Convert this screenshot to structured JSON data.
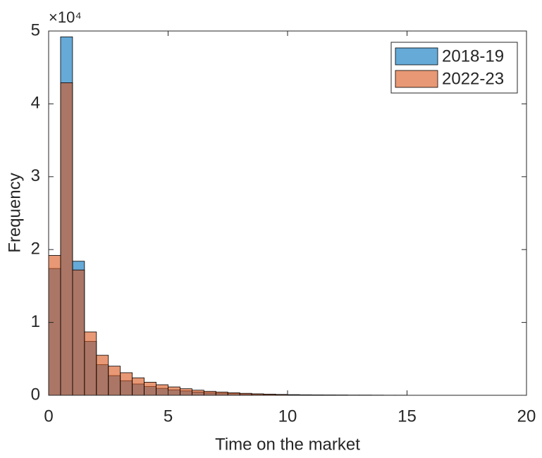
{
  "chart_data": {
    "type": "histogram",
    "xlabel": "Time on the market",
    "ylabel": "Frequency",
    "y_multiplier": "×10⁴",
    "bins": [
      0,
      0.5,
      1,
      1.5,
      2,
      2.5,
      3,
      3.5,
      4,
      4.5,
      5,
      5.5,
      6,
      6.5,
      7,
      7.5,
      8,
      8.5,
      9,
      9.5,
      10,
      10.5,
      11,
      11.5,
      12,
      12.5,
      13,
      13.5,
      14,
      14.5,
      15,
      15.5,
      16,
      16.5,
      17,
      17.5,
      18,
      18.5,
      19,
      19.5,
      20
    ],
    "series": [
      {
        "name": "2018-19",
        "color": "#0072bd",
        "values": [
          1.74,
          4.92,
          1.84,
          0.74,
          0.42,
          0.27,
          0.2,
          0.155,
          0.12,
          0.095,
          0.075,
          0.06,
          0.045,
          0.035,
          0.028,
          0.022,
          0.017,
          0.013,
          0.01,
          0.008,
          0.006,
          0.005,
          0.004,
          0.003,
          0.003,
          0.002,
          0.002,
          0.002,
          0.001,
          0.001,
          0.001,
          0.001,
          0.001,
          0.001,
          0,
          0,
          0,
          0,
          0,
          0
        ]
      },
      {
        "name": "2022-23",
        "color": "#d95319",
        "values": [
          1.92,
          4.29,
          1.72,
          0.87,
          0.55,
          0.4,
          0.31,
          0.24,
          0.18,
          0.145,
          0.115,
          0.09,
          0.07,
          0.055,
          0.045,
          0.035,
          0.027,
          0.02,
          0.016,
          0.012,
          0.009,
          0.007,
          0.006,
          0.005,
          0.004,
          0.003,
          0.003,
          0.002,
          0.002,
          0.002,
          0.001,
          0.001,
          0.001,
          0.001,
          0.001,
          0,
          0,
          0,
          0,
          0
        ]
      }
    ],
    "xlim": [
      0,
      20
    ],
    "xticks": [
      0,
      5,
      10,
      15,
      20
    ],
    "ylim": [
      0,
      5
    ],
    "yticks": [
      0,
      1,
      2,
      3,
      4,
      5
    ],
    "face_opacity": 0.6,
    "legend": "northeast"
  }
}
